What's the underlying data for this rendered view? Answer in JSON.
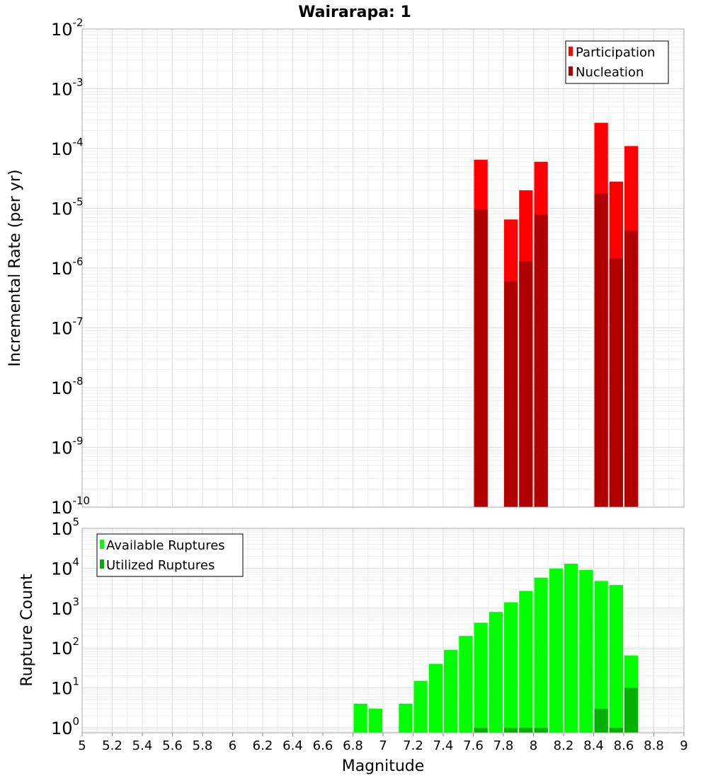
{
  "chart_data": [
    {
      "type": "bar",
      "title": "Wairarapa: 1",
      "xlabel": "",
      "ylabel": "Incremental Rate (per yr)",
      "yscale": "log",
      "ylim": [
        1e-10,
        0.01
      ],
      "xlim": [
        5,
        9
      ],
      "grid": true,
      "legend_position": "top-right",
      "x": [
        7.65,
        7.85,
        7.95,
        8.05,
        8.45,
        8.55,
        8.65
      ],
      "series": [
        {
          "name": "Participation",
          "color": "#ff0000",
          "values": [
            6.5e-05,
            6.5e-06,
            2e-05,
            6e-05,
            0.00027,
            2.8e-05,
            0.00011
          ]
        },
        {
          "name": "Nucleation",
          "color": "#b00000",
          "values": [
            9.5e-06,
            6e-07,
            1.3e-06,
            7.8e-06,
            1.75e-05,
            1.45e-06,
            4.2e-06
          ]
        }
      ]
    },
    {
      "type": "bar",
      "title": "",
      "xlabel": "Magnitude",
      "ylabel": "Rupture Count",
      "yscale": "log",
      "ylim": [
        0.75,
        100000.0
      ],
      "xlim": [
        5,
        9
      ],
      "grid": true,
      "legend_position": "top-left",
      "x": [
        6.85,
        6.95,
        7.15,
        7.25,
        7.35,
        7.45,
        7.55,
        7.65,
        7.75,
        7.85,
        7.95,
        8.05,
        8.15,
        8.25,
        8.35,
        8.45,
        8.55,
        8.65
      ],
      "series": [
        {
          "name": "Available Ruptures",
          "color": "#00ff00",
          "values": [
            4,
            3,
            4,
            15,
            40,
            90,
            200,
            430,
            800,
            1400,
            2700,
            5800,
            9800,
            13000,
            9000,
            4800,
            3800,
            65
          ]
        },
        {
          "name": "Utilized Ruptures",
          "color": "#00b000",
          "values": [
            0,
            0,
            0,
            0,
            0,
            0,
            0,
            1,
            0,
            1,
            1,
            1,
            0,
            0,
            0,
            3,
            1,
            10
          ]
        }
      ]
    }
  ],
  "x_ticks": [
    "5",
    "5.2",
    "5.4",
    "5.6",
    "5.8",
    "6",
    "6.2",
    "6.4",
    "6.6",
    "6.8",
    "7",
    "7.2",
    "7.4",
    "7.6",
    "7.8",
    "8",
    "8.2",
    "8.4",
    "8.6",
    "8.8",
    "9"
  ],
  "top_y_ticks": [
    {
      "base": "10",
      "exp": "-2"
    },
    {
      "base": "10",
      "exp": "-3"
    },
    {
      "base": "10",
      "exp": "-4"
    },
    {
      "base": "10",
      "exp": "-5"
    },
    {
      "base": "10",
      "exp": "-6"
    },
    {
      "base": "10",
      "exp": "-7"
    },
    {
      "base": "10",
      "exp": "-8"
    },
    {
      "base": "10",
      "exp": "-9"
    },
    {
      "base": "10",
      "exp": "-10"
    }
  ],
  "bottom_y_ticks": [
    {
      "base": "10",
      "exp": "5"
    },
    {
      "base": "10",
      "exp": "4"
    },
    {
      "base": "10",
      "exp": "3"
    },
    {
      "base": "10",
      "exp": "2"
    },
    {
      "base": "10",
      "exp": "1"
    },
    {
      "base": "10",
      "exp": "0"
    }
  ]
}
